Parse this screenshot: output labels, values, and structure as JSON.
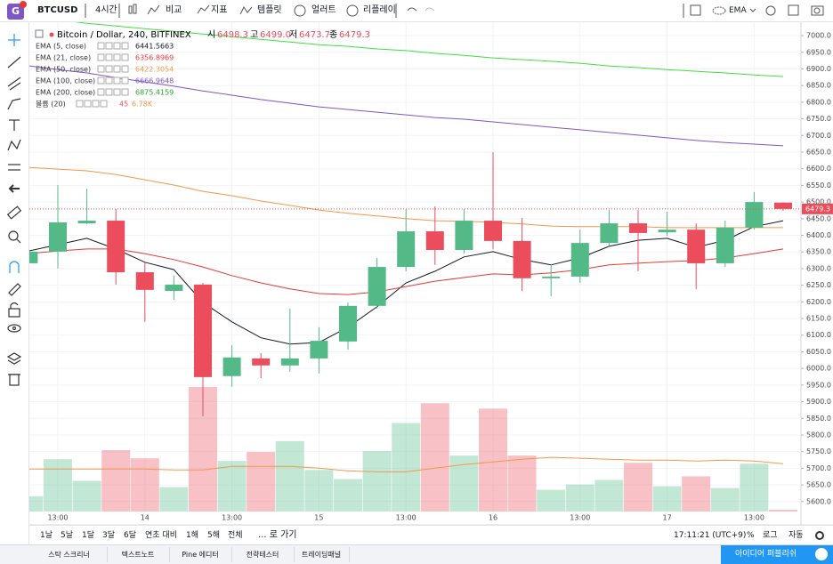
{
  "toolbar": {
    "symbol": "BTCUSD",
    "interval": "4시간",
    "items": [
      "비교",
      "지표",
      "템플릿",
      "얼러트",
      "리플레이"
    ],
    "indicator": "EMA"
  },
  "chart_data": {
    "type": "candlestick",
    "title": "Bitcoin / Dollar, 240, BITFINEX",
    "ohlc_header": [
      {
        "key": "시",
        "value": 6498.3,
        "label": "6498.3"
      },
      {
        "key": "고",
        "value": 6499.0,
        "label": "6499.0"
      },
      {
        "key": "저",
        "value": 6473.7,
        "label": "6473.7"
      },
      {
        "key": "종",
        "value": 6479.3,
        "label": "6479.3"
      }
    ],
    "categories": [
      null,
      "13:00",
      null,
      null,
      "14",
      null,
      null,
      "13:00",
      null,
      null,
      "15",
      null,
      null,
      "13:00",
      null,
      null,
      "16",
      null,
      null,
      "13:00",
      null,
      null,
      "17",
      null,
      null,
      "13:00",
      null
    ],
    "open": [
      6316,
      6351,
      6436,
      6444,
      6289,
      6233,
      6252,
      5977,
      6030,
      6009,
      6030,
      6081,
      6188,
      6305,
      6412,
      6356,
      6444,
      6383,
      6271,
      6276,
      6377,
      6436,
      6409,
      6417,
      6316,
      6423,
      6498.3
    ],
    "high": [
      6385,
      6551,
      6540,
      6479,
      6319,
      6279,
      6257,
      6070,
      6046,
      6180,
      6124,
      6198,
      6332,
      6479,
      6487,
      6479,
      6650,
      6452,
      6313,
      6417,
      6476,
      6476,
      6471,
      6436,
      6444,
      6530,
      6499
    ],
    "low": [
      6305,
      6300,
      6434,
      6252,
      6140,
      6206,
      5856,
      5945,
      5971,
      5990,
      5985,
      6057,
      6180,
      6292,
      6311,
      6345,
      6359,
      6233,
      6217,
      6257,
      6364,
      6292,
      6399,
      6238,
      6305,
      6417,
      6473.7
    ],
    "close": [
      6351,
      6439,
      6444,
      6289,
      6236,
      6252,
      5974,
      6033,
      6009,
      6030,
      6083,
      6188,
      6305,
      6412,
      6356,
      6444,
      6383,
      6271,
      6276,
      6377,
      6436,
      6407,
      6417,
      6316,
      6423,
      6500,
      6479.3
    ],
    "up_color": "#53b987",
    "down_color": "#eb4d5c",
    "series": [
      {
        "name": "EMA (5, close)",
        "color": "#131722",
        "legend_value": 6441.5663,
        "values": [
          6353,
          6372,
          6391,
          6359,
          6319,
          6297,
          6198,
          6140,
          6092,
          6073,
          6078,
          6124,
          6185,
          6257,
          6292,
          6335,
          6351,
          6327,
          6311,
          6332,
          6367,
          6385,
          6391,
          6364,
          6385,
          6426,
          6444
        ]
      },
      {
        "name": "EMA (21, close)",
        "color": "#e53935",
        "legend_value": 6356.8969,
        "values": [
          6345,
          6353,
          6359,
          6359,
          6345,
          6327,
          6305,
          6279,
          6257,
          6239,
          6225,
          6222,
          6230,
          6246,
          6262,
          6273,
          6284,
          6281,
          6287,
          6297,
          6311,
          6316,
          6321,
          6324,
          6332,
          6345,
          6359
        ]
      },
      {
        "name": "EMA (50, close)",
        "color": "#ef9a4a",
        "legend_value": 6422.3054,
        "values": [
          6604,
          6599,
          6594,
          6583,
          6567,
          6551,
          6532,
          6519,
          6503,
          6490,
          6476,
          6466,
          6458,
          6450,
          6444,
          6442,
          6439,
          6434,
          6428,
          6426,
          6426,
          6426,
          6423,
          6423,
          6423,
          6423,
          6423
        ]
      },
      {
        "name": "EMA (100, close)",
        "color": "#7e57c2",
        "legend_value": 6666.9648,
        "values": [
          6909,
          6898,
          6888,
          6874,
          6861,
          6848,
          6834,
          6821,
          6808,
          6797,
          6786,
          6778,
          6770,
          6762,
          6754,
          6749,
          6741,
          6733,
          6725,
          6717,
          6709,
          6701,
          6693,
          6685,
          6679,
          6674,
          6669
        ]
      },
      {
        "name": "EMA (200, close)",
        "color": "#3ee03e",
        "legend_value": 6875.4159,
        "values": [
          7059,
          7048,
          7037,
          7029,
          7021,
          7013,
          7005,
          6997,
          6989,
          6981,
          6973,
          6968,
          6960,
          6955,
          6947,
          6941,
          6933,
          6928,
          6923,
          6917,
          6909,
          6904,
          6898,
          6893,
          6888,
          6882,
          6877
        ]
      }
    ],
    "volume": {
      "name": "볼륨 (20)",
      "legend": [
        45,
        "6.78K"
      ],
      "ma_color": "#ef9a4a",
      "values": [
        17,
        58,
        34,
        68,
        59,
        27,
        138,
        56,
        66,
        78,
        46,
        36,
        67,
        98,
        120,
        62,
        114,
        62,
        24,
        30,
        35,
        54,
        28,
        39,
        26,
        53,
        2
      ],
      "ma": [
        47,
        47,
        47,
        47,
        47,
        46,
        46,
        50,
        50,
        50,
        48,
        45,
        44,
        44,
        48,
        52,
        55,
        58,
        60,
        59,
        58,
        57,
        57,
        56,
        57,
        56,
        53
      ]
    },
    "ylim": [
      5570,
      7043
    ],
    "yticks": [
      {
        "value": 7000,
        "label": "7000.0"
      },
      {
        "value": 6950,
        "label": "6950.0"
      },
      {
        "value": 6900,
        "label": "6900.0"
      },
      {
        "value": 6850,
        "label": "6850.0"
      },
      {
        "value": 6800,
        "label": "6800.0"
      },
      {
        "value": 6750,
        "label": "6750.0"
      },
      {
        "value": 6700,
        "label": "6700.0"
      },
      {
        "value": 6650,
        "label": "6650.0"
      },
      {
        "value": 6600,
        "label": "6600.0"
      },
      {
        "value": 6550,
        "label": "6550.0"
      },
      {
        "value": 6500,
        "label": "6500.0"
      },
      {
        "value": 6450,
        "label": "6450.0"
      },
      {
        "value": 6400,
        "label": "6400.0"
      },
      {
        "value": 6350,
        "label": "6350.0"
      },
      {
        "value": 6300,
        "label": "6300.0"
      },
      {
        "value": 6250,
        "label": "6250.0"
      },
      {
        "value": 6200,
        "label": "6200.0"
      },
      {
        "value": 6150,
        "label": "6150.0"
      },
      {
        "value": 6100,
        "label": "6100.0"
      },
      {
        "value": 6050,
        "label": "6050.0"
      },
      {
        "value": 6000,
        "label": "6000.0"
      },
      {
        "value": 5950,
        "label": "5950.0"
      },
      {
        "value": 5900,
        "label": "5900.0"
      },
      {
        "value": 5850,
        "label": "5850.0"
      },
      {
        "value": 5800,
        "label": "5800.0"
      },
      {
        "value": 5750,
        "label": "5750.0"
      },
      {
        "value": 5700,
        "label": "5700.0"
      },
      {
        "value": 5650,
        "label": "5650.0"
      },
      {
        "value": 5600,
        "label": "5600.0"
      }
    ],
    "grid": true
  },
  "bottom_bar": {
    "ranges": [
      "1날",
      "5날",
      "1달",
      "3달",
      "6달",
      "연초 대비",
      "1해",
      "5해",
      "전체"
    ],
    "goto": "... 로 가기",
    "time": "17:11:21 (UTC+9)",
    "options": [
      "%",
      "로그",
      "자동"
    ]
  },
  "footer": {
    "tabs": [
      "스탁 스크리너",
      "텍스트노트",
      "Pine 에디터",
      "전략테스터",
      "트레이딩패널"
    ],
    "publish": "아이디어 퍼블리쉬"
  }
}
